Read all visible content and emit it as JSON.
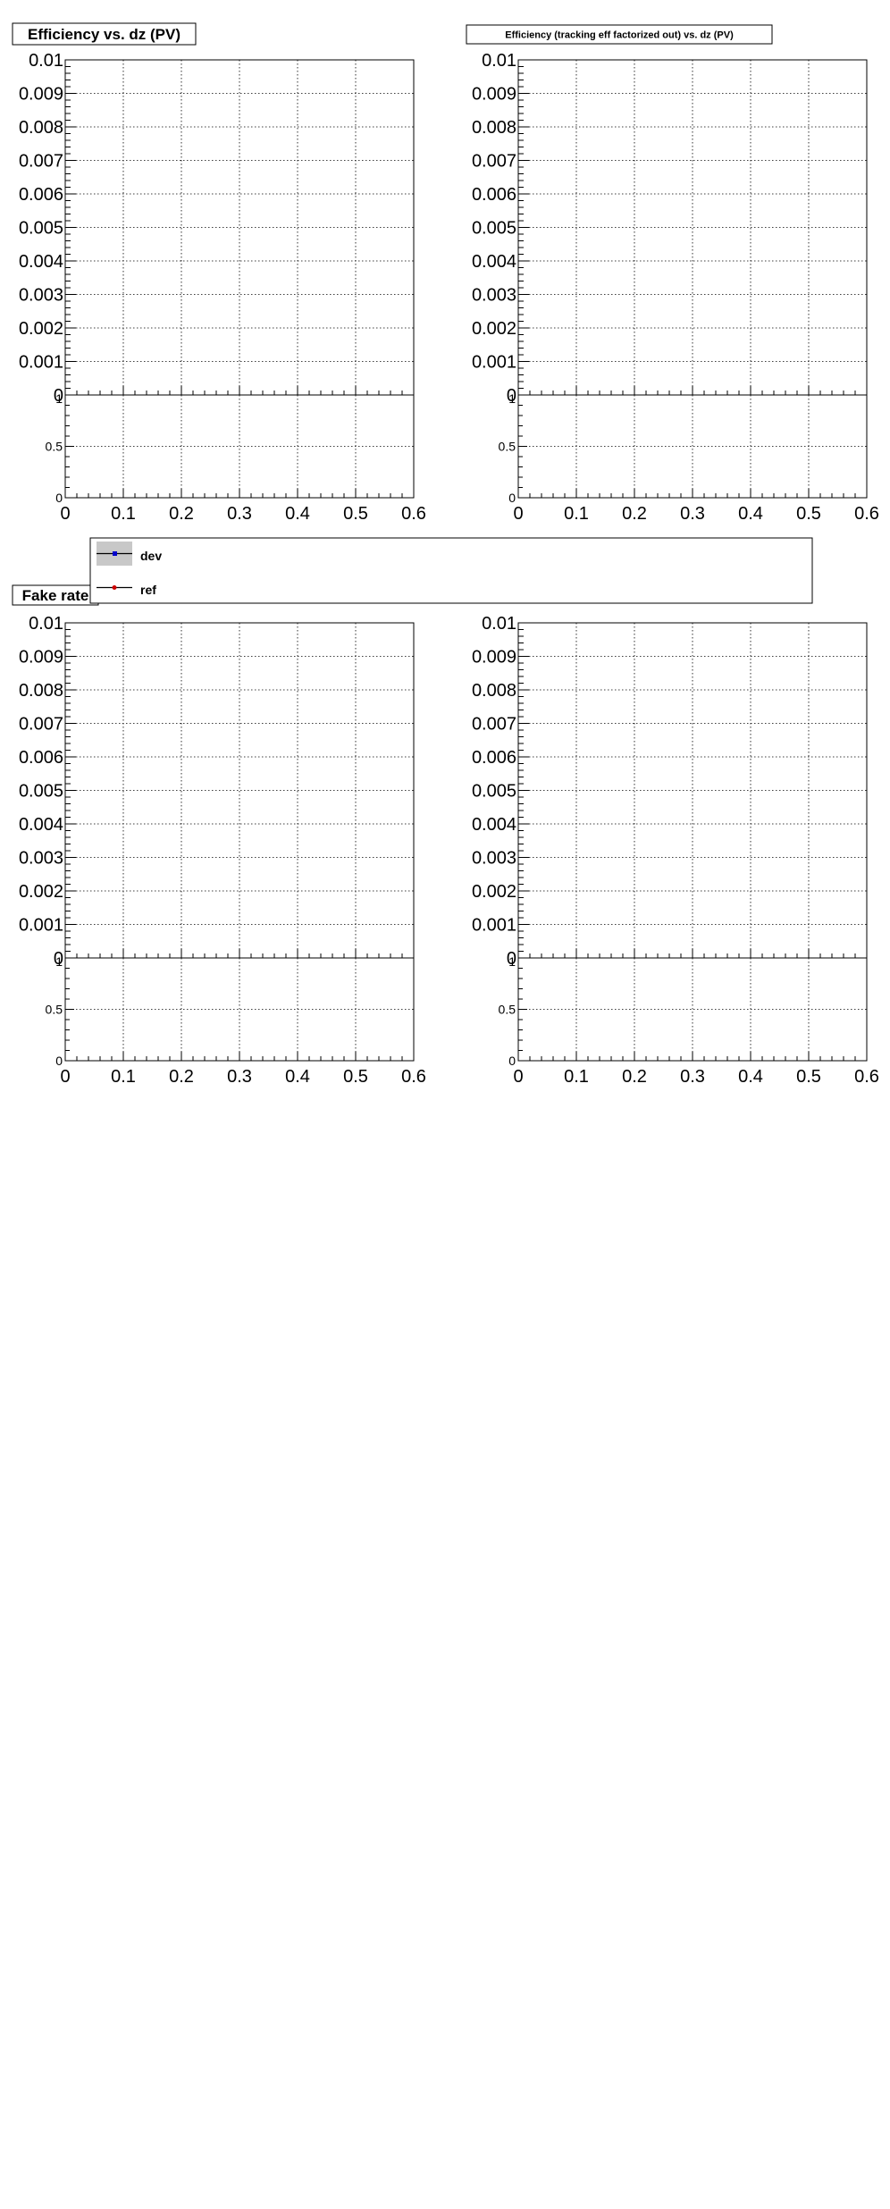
{
  "chart_data": [
    {
      "type": "line",
      "title": "Efficiency vs. dz (PV)",
      "xlim": [
        0,
        0.6
      ],
      "ylim": [
        0,
        0.01
      ],
      "x_ticks": [
        "0",
        "0.1",
        "0.2",
        "0.3",
        "0.4",
        "0.5",
        "0.6"
      ],
      "y_ticks": [
        "0",
        "0.001",
        "0.002",
        "0.003",
        "0.004",
        "0.005",
        "0.006",
        "0.007",
        "0.008",
        "0.009",
        "0.01"
      ],
      "ratio_ylim": [
        0,
        1
      ],
      "ratio_ticks": [
        "0",
        "0.5",
        "1"
      ],
      "grid": true,
      "series": [
        {
          "name": "dev",
          "x": [],
          "y": []
        },
        {
          "name": "ref",
          "x": [],
          "y": []
        }
      ]
    },
    {
      "type": "line",
      "title": "Efficiency (tracking eff factorized out) vs. dz (PV)",
      "xlim": [
        0,
        0.6
      ],
      "ylim": [
        0,
        0.01
      ],
      "x_ticks": [
        "0",
        "0.1",
        "0.2",
        "0.3",
        "0.4",
        "0.5",
        "0.6"
      ],
      "y_ticks": [
        "0",
        "0.001",
        "0.002",
        "0.003",
        "0.004",
        "0.005",
        "0.006",
        "0.007",
        "0.008",
        "0.009",
        "0.01"
      ],
      "ratio_ylim": [
        0,
        1
      ],
      "ratio_ticks": [
        "0",
        "0.5",
        "1"
      ],
      "grid": true,
      "series": [
        {
          "name": "dev",
          "x": [],
          "y": []
        },
        {
          "name": "ref",
          "x": [],
          "y": []
        }
      ]
    },
    {
      "type": "line",
      "title": "Fake rate",
      "xlim": [
        0,
        0.6
      ],
      "ylim": [
        0,
        0.01
      ],
      "x_ticks": [
        "0",
        "0.1",
        "0.2",
        "0.3",
        "0.4",
        "0.5",
        "0.6"
      ],
      "y_ticks": [
        "0",
        "0.001",
        "0.002",
        "0.003",
        "0.004",
        "0.005",
        "0.006",
        "0.007",
        "0.008",
        "0.009",
        "0.01"
      ],
      "ratio_ylim": [
        0,
        1
      ],
      "ratio_ticks": [
        "0",
        "0.5",
        "1"
      ],
      "grid": true,
      "series": [
        {
          "name": "dev",
          "x": [],
          "y": []
        },
        {
          "name": "ref",
          "x": [],
          "y": []
        }
      ]
    },
    {
      "type": "line",
      "title": "",
      "xlim": [
        0,
        0.6
      ],
      "ylim": [
        0,
        0.01
      ],
      "x_ticks": [
        "0",
        "0.1",
        "0.2",
        "0.3",
        "0.4",
        "0.5",
        "0.6"
      ],
      "y_ticks": [
        "0",
        "0.001",
        "0.002",
        "0.003",
        "0.004",
        "0.005",
        "0.006",
        "0.007",
        "0.008",
        "0.009",
        "0.01"
      ],
      "ratio_ylim": [
        0,
        1
      ],
      "ratio_ticks": [
        "0",
        "0.5",
        "1"
      ],
      "grid": true,
      "series": [
        {
          "name": "dev",
          "x": [],
          "y": []
        },
        {
          "name": "ref",
          "x": [],
          "y": []
        }
      ]
    }
  ],
  "legend": {
    "placement": "center",
    "entries": [
      {
        "label": "dev",
        "color": "#0000cc",
        "band_color": "#c8c8c8"
      },
      {
        "label": "ref",
        "color": "#cc0000"
      }
    ]
  }
}
